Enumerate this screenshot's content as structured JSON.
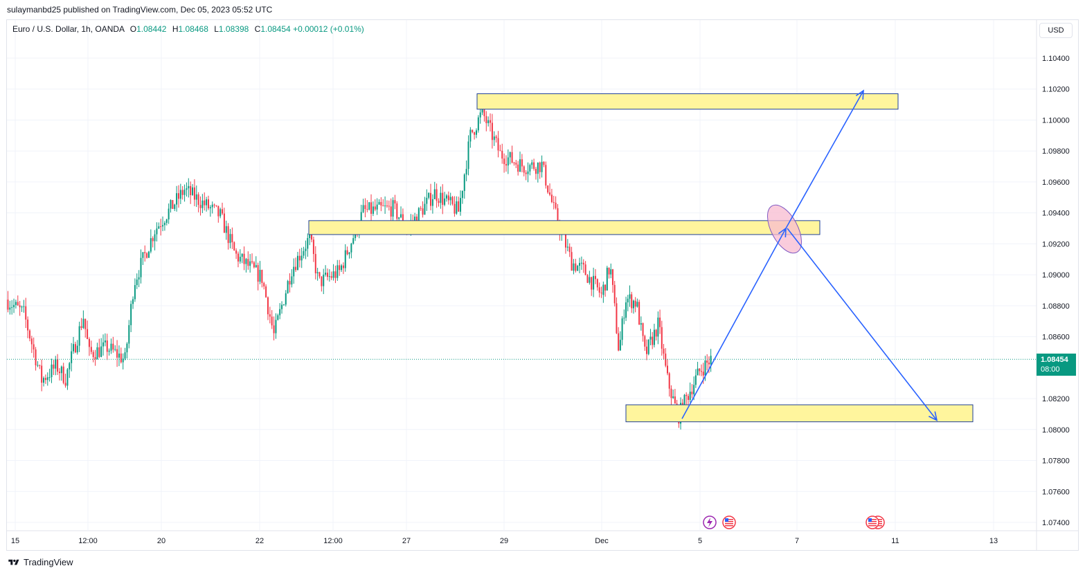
{
  "header": {
    "published_by": "sulaymanbd25 published on TradingView.com, Dec 05, 2023 05:52 UTC"
  },
  "legend": {
    "symbol": "Euro / U.S. Dollar, 1h, OANDA",
    "open_label": "O",
    "open": "1.08442",
    "high_label": "H",
    "high": "1.08468",
    "low_label": "L",
    "low": "1.08398",
    "close_label": "C",
    "close": "1.08454",
    "change": "+0.00012 (+0.01%)"
  },
  "currency_button": "USD",
  "price_tag": {
    "price": "1.08454",
    "countdown": "08:00"
  },
  "brand": {
    "name": "TradingView"
  },
  "colors": {
    "up": "#089981",
    "down": "#f23645",
    "zone_fill": "#fff59d",
    "zone_border": "#1e3f99",
    "arrow": "#2962ff",
    "ellipse_fill": "#f8bbd0",
    "ellipse_stroke": "#7e57c2",
    "grid": "#f0f3fa"
  },
  "icons": [
    "lightning-event-icon",
    "us-flag-event-icon",
    "us-flag-event-icon"
  ],
  "chart_data": {
    "type": "candlestick",
    "title": "",
    "ylim": [
      1.0735,
      1.1075
    ],
    "y_ticks": [
      "1.10400",
      "1.10200",
      "1.10000",
      "1.09800",
      "1.09600",
      "1.09400",
      "1.09200",
      "1.09000",
      "1.08800",
      "1.08600",
      "1.08200",
      "1.08000",
      "1.07800",
      "1.07600",
      "1.07400"
    ],
    "x_ticks": [
      "15",
      "12:00",
      "20",
      "22",
      "12:00",
      "27",
      "29",
      "Dec",
      "5",
      "7",
      "11",
      "13"
    ],
    "last_price": 1.08454,
    "price_path": [
      {
        "t": 0.0,
        "p": 1.0884
      },
      {
        "t": 0.03,
        "p": 1.0875
      },
      {
        "t": 0.06,
        "p": 1.0832
      },
      {
        "t": 0.085,
        "p": 1.0841
      },
      {
        "t": 0.1,
        "p": 1.0833
      },
      {
        "t": 0.13,
        "p": 1.0873
      },
      {
        "t": 0.14,
        "p": 1.0849
      },
      {
        "t": 0.17,
        "p": 1.0853
      },
      {
        "t": 0.2,
        "p": 1.0845
      },
      {
        "t": 0.215,
        "p": 1.0895
      },
      {
        "t": 0.25,
        "p": 1.0929
      },
      {
        "t": 0.3,
        "p": 1.0955
      },
      {
        "t": 0.36,
        "p": 1.0938
      },
      {
        "t": 0.385,
        "p": 1.0913
      },
      {
        "t": 0.43,
        "p": 1.0898
      },
      {
        "t": 0.45,
        "p": 1.0861
      },
      {
        "t": 0.48,
        "p": 1.0904
      },
      {
        "t": 0.51,
        "p": 1.0924
      },
      {
        "t": 0.525,
        "p": 1.0895
      },
      {
        "t": 0.56,
        "p": 1.0902
      },
      {
        "t": 0.6,
        "p": 1.0941
      },
      {
        "t": 0.65,
        "p": 1.0943
      },
      {
        "t": 0.675,
        "p": 1.093
      },
      {
        "t": 0.72,
        "p": 1.0953
      },
      {
        "t": 0.76,
        "p": 1.0941
      },
      {
        "t": 0.78,
        "p": 1.099
      },
      {
        "t": 0.8,
        "p": 1.1005
      },
      {
        "t": 0.83,
        "p": 1.0978
      },
      {
        "t": 0.87,
        "p": 1.097
      },
      {
        "t": 0.9,
        "p": 1.0971
      },
      {
        "t": 0.92,
        "p": 1.0942
      },
      {
        "t": 0.95,
        "p": 1.0908
      },
      {
        "t": 0.97,
        "p": 1.0903
      },
      {
        "t": 1.0,
        "p": 1.0887
      }
    ],
    "price_path_2": [
      {
        "t": 0.0,
        "p": 1.0887
      },
      {
        "t": 0.08,
        "p": 1.0906
      },
      {
        "t": 0.16,
        "p": 1.085
      },
      {
        "t": 0.22,
        "p": 1.0885
      },
      {
        "t": 0.32,
        "p": 1.0882
      },
      {
        "t": 0.4,
        "p": 1.0848
      },
      {
        "t": 0.52,
        "p": 1.0868
      },
      {
        "t": 0.6,
        "p": 1.0833
      },
      {
        "t": 0.7,
        "p": 1.0808
      },
      {
        "t": 0.8,
        "p": 1.0824
      },
      {
        "t": 0.9,
        "p": 1.0838
      },
      {
        "t": 1.0,
        "p": 1.08454
      }
    ],
    "zones": [
      {
        "name": "resistance",
        "from": 1.1007,
        "to": 1.1017
      },
      {
        "name": "mid",
        "from": 1.0926,
        "to": 1.0935
      },
      {
        "name": "support",
        "from": 1.0805,
        "to": 1.0816
      }
    ],
    "projections": [
      {
        "name": "up-move",
        "from": 1.0807,
        "to": 1.1019
      },
      {
        "name": "down-move",
        "from": 1.093,
        "to": 1.0806
      }
    ],
    "grid": true
  }
}
